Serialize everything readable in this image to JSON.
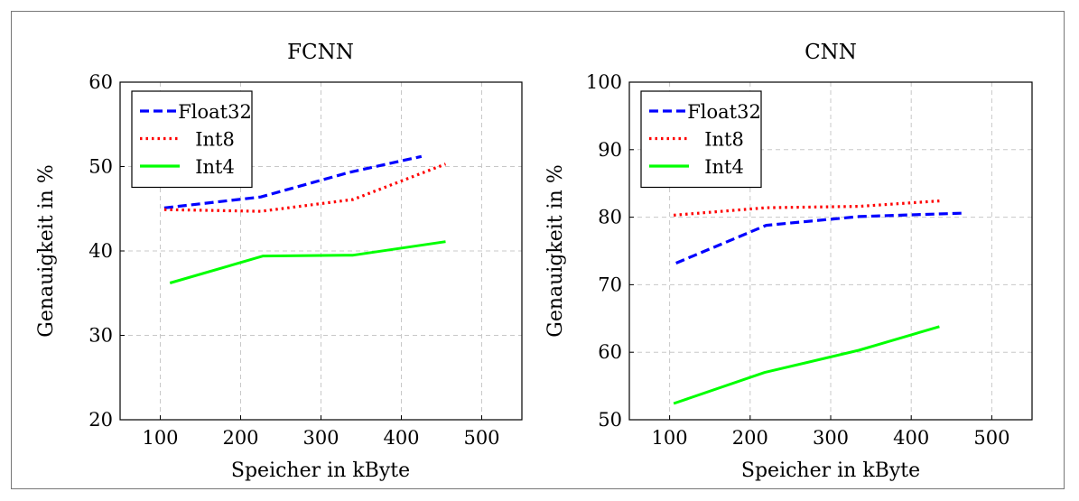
{
  "chart_data": [
    {
      "type": "line",
      "title": "FCNN",
      "xlabel": "Speicher in kByte",
      "ylabel": "Genauigkeit in %",
      "xlim": [
        50,
        550
      ],
      "ylim": [
        20,
        60
      ],
      "xticks": [
        "100",
        "200",
        "300",
        "400",
        "500"
      ],
      "yticks": [
        "20",
        "30",
        "40",
        "50",
        "60"
      ],
      "grid": true,
      "legend_position": "top-left",
      "series": [
        {
          "name": "Float32",
          "color": "#0000ff",
          "style": "dashed",
          "points": [
            [
              105,
              45.1
            ],
            [
              225,
              46.4
            ],
            [
              335,
              49.3
            ],
            [
              425,
              51.2
            ]
          ]
        },
        {
          "name": "Int8",
          "color": "#ff0000",
          "style": "dotted",
          "points": [
            [
              105,
              44.9
            ],
            [
              225,
              44.7
            ],
            [
              340,
              46.1
            ],
            [
              455,
              50.3
            ]
          ]
        },
        {
          "name": "Int4",
          "color": "#00ff00",
          "style": "solid",
          "points": [
            [
              112,
              36.2
            ],
            [
              228,
              39.4
            ],
            [
              340,
              39.5
            ],
            [
              455,
              41.1
            ]
          ]
        }
      ]
    },
    {
      "type": "line",
      "title": "CNN",
      "xlabel": "Speicher in kByte",
      "ylabel": "Genauigkeit in %",
      "xlim": [
        50,
        550
      ],
      "ylim": [
        50,
        100
      ],
      "xticks": [
        "100",
        "200",
        "300",
        "400",
        "500"
      ],
      "yticks": [
        "50",
        "60",
        "70",
        "80",
        "90",
        "100"
      ],
      "grid": true,
      "legend_position": "top-left",
      "series": [
        {
          "name": "Float32",
          "color": "#0000ff",
          "style": "dashed",
          "points": [
            [
              108,
              73.2
            ],
            [
              220,
              78.8
            ],
            [
              335,
              80.1
            ],
            [
              465,
              80.6
            ]
          ]
        },
        {
          "name": "Int8",
          "color": "#ff0000",
          "style": "dotted",
          "points": [
            [
              105,
              80.3
            ],
            [
              220,
              81.4
            ],
            [
              335,
              81.6
            ],
            [
              435,
              82.4
            ]
          ]
        },
        {
          "name": "Int4",
          "color": "#00ff00",
          "style": "solid",
          "points": [
            [
              105,
              52.4
            ],
            [
              218,
              57.0
            ],
            [
              335,
              60.3
            ],
            [
              435,
              63.8
            ]
          ]
        }
      ]
    }
  ]
}
